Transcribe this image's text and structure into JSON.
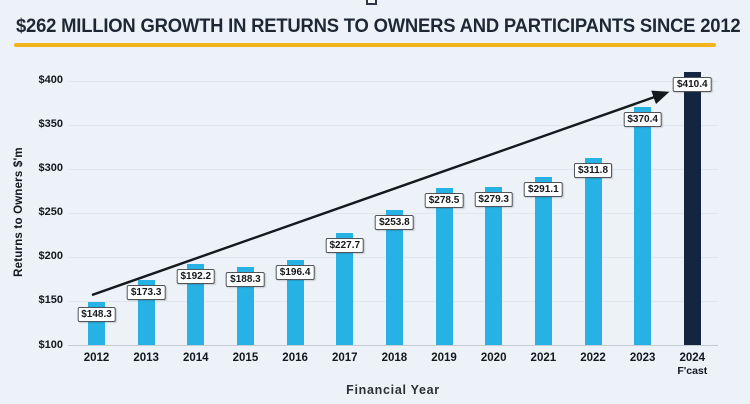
{
  "page": {
    "title": "$262 MILLION GROWTH IN RETURNS TO OWNERS AND PARTICIPANTS SINCE 2012",
    "background_color": "#edf1f8",
    "title_color": "#1e2834",
    "underline_color": "#f2b31b"
  },
  "chart_data": {
    "type": "bar",
    "title": "$262 MILLION GROWTH IN RETURNS TO OWNERS AND PARTICIPANTS SINCE 2012",
    "xlabel": "Financial Year",
    "ylabel": "Returns to Owners $'m",
    "ylim": [
      100,
      420
    ],
    "grid": "horizontal",
    "legend": "none",
    "colors": {
      "bar": "#27b2e6",
      "forecast_bar": "#14263f",
      "arrow": "#15181c"
    },
    "y_axis": {
      "ticks": [
        {
          "value": 400,
          "label": "$400"
        },
        {
          "value": 350,
          "label": "$350"
        },
        {
          "value": 300,
          "label": "$300"
        },
        {
          "value": 250,
          "label": "$250"
        },
        {
          "value": 200,
          "label": "$200"
        },
        {
          "value": 150,
          "label": "$150"
        },
        {
          "value": 100,
          "label": "$100"
        }
      ]
    },
    "points": [
      {
        "year": "2012",
        "value": 148.3,
        "label": "$148.3",
        "forecast": false
      },
      {
        "year": "2013",
        "value": 173.3,
        "label": "$173.3",
        "forecast": false
      },
      {
        "year": "2014",
        "value": 192.2,
        "label": "$192.2",
        "forecast": false
      },
      {
        "year": "2015",
        "value": 188.3,
        "label": "$188.3",
        "forecast": false
      },
      {
        "year": "2016",
        "value": 196.4,
        "label": "$196.4",
        "forecast": false
      },
      {
        "year": "2017",
        "value": 227.7,
        "label": "$227.7",
        "forecast": false
      },
      {
        "year": "2018",
        "value": 253.8,
        "label": "$253.8",
        "forecast": false
      },
      {
        "year": "2019",
        "value": 278.5,
        "label": "$278.5",
        "forecast": false
      },
      {
        "year": "2020",
        "value": 279.3,
        "label": "$279.3",
        "forecast": false
      },
      {
        "year": "2021",
        "value": 291.1,
        "label": "$291.1",
        "forecast": false
      },
      {
        "year": "2022",
        "value": 311.8,
        "label": "$311.8",
        "forecast": false
      },
      {
        "year": "2023",
        "value": 370.4,
        "label": "$370.4",
        "forecast": false
      },
      {
        "year": "2024",
        "sublabel": "F'cast",
        "value": 410.4,
        "label": "$410.4",
        "forecast": true
      }
    ],
    "annotations": [
      {
        "type": "trend-arrow",
        "from_year": "2012",
        "to_year": "2024",
        "direction": "up"
      }
    ]
  }
}
